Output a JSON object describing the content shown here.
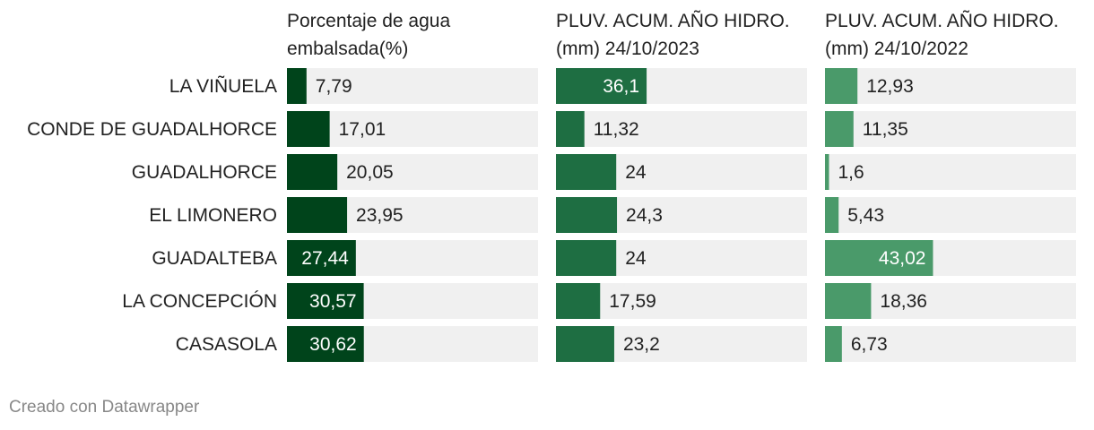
{
  "chart_data": {
    "type": "bar",
    "categories": [
      "LA VIÑUELA",
      "CONDE DE GUADALHORCE",
      "GUADALHORCE",
      "EL LIMONERO",
      "GUADALTEBA",
      "LA CONCEPCIÓN",
      "CASASOLA"
    ],
    "series": [
      {
        "name": "Porcentaje de agua embalsada(%)",
        "title_lines": [
          "Porcentaje de agua",
          "embalsada(%)"
        ],
        "values": [
          7.79,
          17.01,
          20.05,
          23.95,
          27.44,
          30.57,
          30.62
        ],
        "labels": [
          "7,79",
          "17,01",
          "20,05",
          "23,95",
          "27,44",
          "30,57",
          "30,62"
        ],
        "color": "#00441b",
        "xlim": [
          0,
          100
        ]
      },
      {
        "name": "PLUV. ACUM. AÑO HIDRO. (mm) 24/10/2023",
        "title_lines": [
          "PLUV. ACUM. AÑO HIDRO.",
          "(mm) 24/10/2023"
        ],
        "values": [
          36.1,
          11.32,
          24,
          24.3,
          24,
          17.59,
          23.2
        ],
        "labels": [
          "36,1",
          "11,32",
          "24",
          "24,3",
          "24",
          "17,59",
          "23,2"
        ],
        "color": "#1e6e42",
        "xlim": [
          0,
          100
        ]
      },
      {
        "name": "PLUV. ACUM. AÑO HIDRO. (mm) 24/10/2022",
        "title_lines": [
          "PLUV. ACUM. AÑO HIDRO.",
          "(mm) 24/10/2022"
        ],
        "values": [
          12.93,
          11.35,
          1.6,
          5.43,
          43.02,
          18.36,
          6.73
        ],
        "labels": [
          "12,93",
          "11,35",
          "1,6",
          "5,43",
          "43,02",
          "18,36",
          "6,73"
        ],
        "color": "#4a9a6a",
        "xlim": [
          0,
          100
        ]
      }
    ],
    "background_bar_color": "#f0f0f0",
    "grid": false,
    "legend": "none"
  },
  "footer": {
    "credit": "Creado con Datawrapper"
  }
}
